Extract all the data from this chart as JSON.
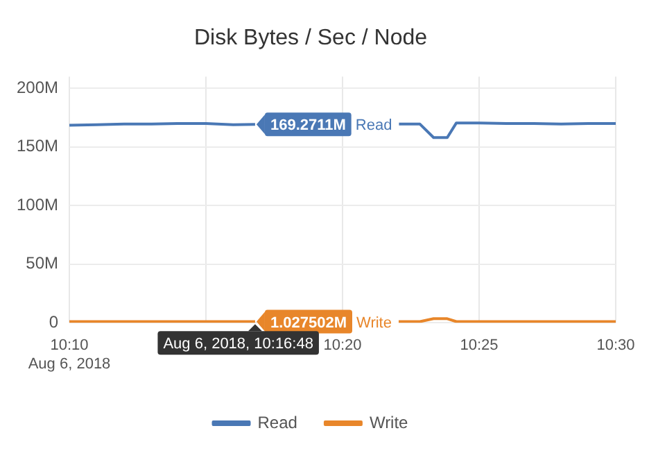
{
  "chart_data": {
    "type": "line",
    "title": "Disk Bytes / Sec / Node",
    "x": [
      "2018-08-06T10:10",
      "2018-08-06T10:11",
      "2018-08-06T10:12",
      "2018-08-06T10:13",
      "2018-08-06T10:14",
      "2018-08-06T10:15",
      "2018-08-06T10:16",
      "2018-08-06T10:16:48",
      "2018-08-06T10:18",
      "2018-08-06T10:19",
      "2018-08-06T10:20",
      "2018-08-06T10:21",
      "2018-08-06T10:22",
      "2018-08-06T10:22:50",
      "2018-08-06T10:23:20",
      "2018-08-06T10:23:50",
      "2018-08-06T10:24:10",
      "2018-08-06T10:25",
      "2018-08-06T10:26",
      "2018-08-06T10:27",
      "2018-08-06T10:28",
      "2018-08-06T10:29",
      "2018-08-06T10:30"
    ],
    "series": [
      {
        "name": "Read",
        "color": "#4a78b5",
        "values": [
          168.5,
          169,
          169.5,
          169.5,
          170,
          170,
          169,
          169.2711,
          null,
          null,
          null,
          null,
          169.5,
          169.5,
          158,
          158,
          170.5,
          170.5,
          170,
          170,
          169.5,
          170,
          170
        ]
      },
      {
        "name": "Write",
        "color": "#e8862a",
        "values": [
          1,
          1,
          1,
          1,
          1,
          1,
          1,
          1.027502,
          null,
          null,
          null,
          null,
          1,
          1,
          3.5,
          3.5,
          1,
          1,
          1,
          1,
          1,
          1,
          1
        ]
      }
    ],
    "xlim": [
      "2018-08-06T10:10",
      "2018-08-06T10:30"
    ],
    "xticks": [
      {
        "value": "2018-08-06T10:10",
        "label": "10:10\nAug 6, 2018"
      },
      {
        "value": "2018-08-06T10:15",
        "label": null
      },
      {
        "value": "2018-08-06T10:20",
        "label": "10:20"
      },
      {
        "value": "2018-08-06T10:25",
        "label": "10:25"
      },
      {
        "value": "2018-08-06T10:30",
        "label": "10:30"
      }
    ],
    "ylim": [
      0,
      210
    ],
    "yticks": [
      0,
      {
        "value": 50,
        "label": "50M"
      },
      {
        "value": 100,
        "label": "100M"
      },
      {
        "value": 150,
        "label": "150M"
      },
      {
        "value": 200,
        "label": "200M"
      }
    ],
    "annotations": [
      {
        "text": "169.2711M",
        "x": "2018-08-06T10:16:48",
        "y": 169.2711
      },
      {
        "text": "1.027502M",
        "x": "2018-08-06T10:16:48",
        "y": 1.027502
      },
      "Aug 6, 2018, 10:16:48"
    ],
    "grid": true,
    "legend": "bottom",
    "marker": "none",
    "line_style": "solid"
  }
}
